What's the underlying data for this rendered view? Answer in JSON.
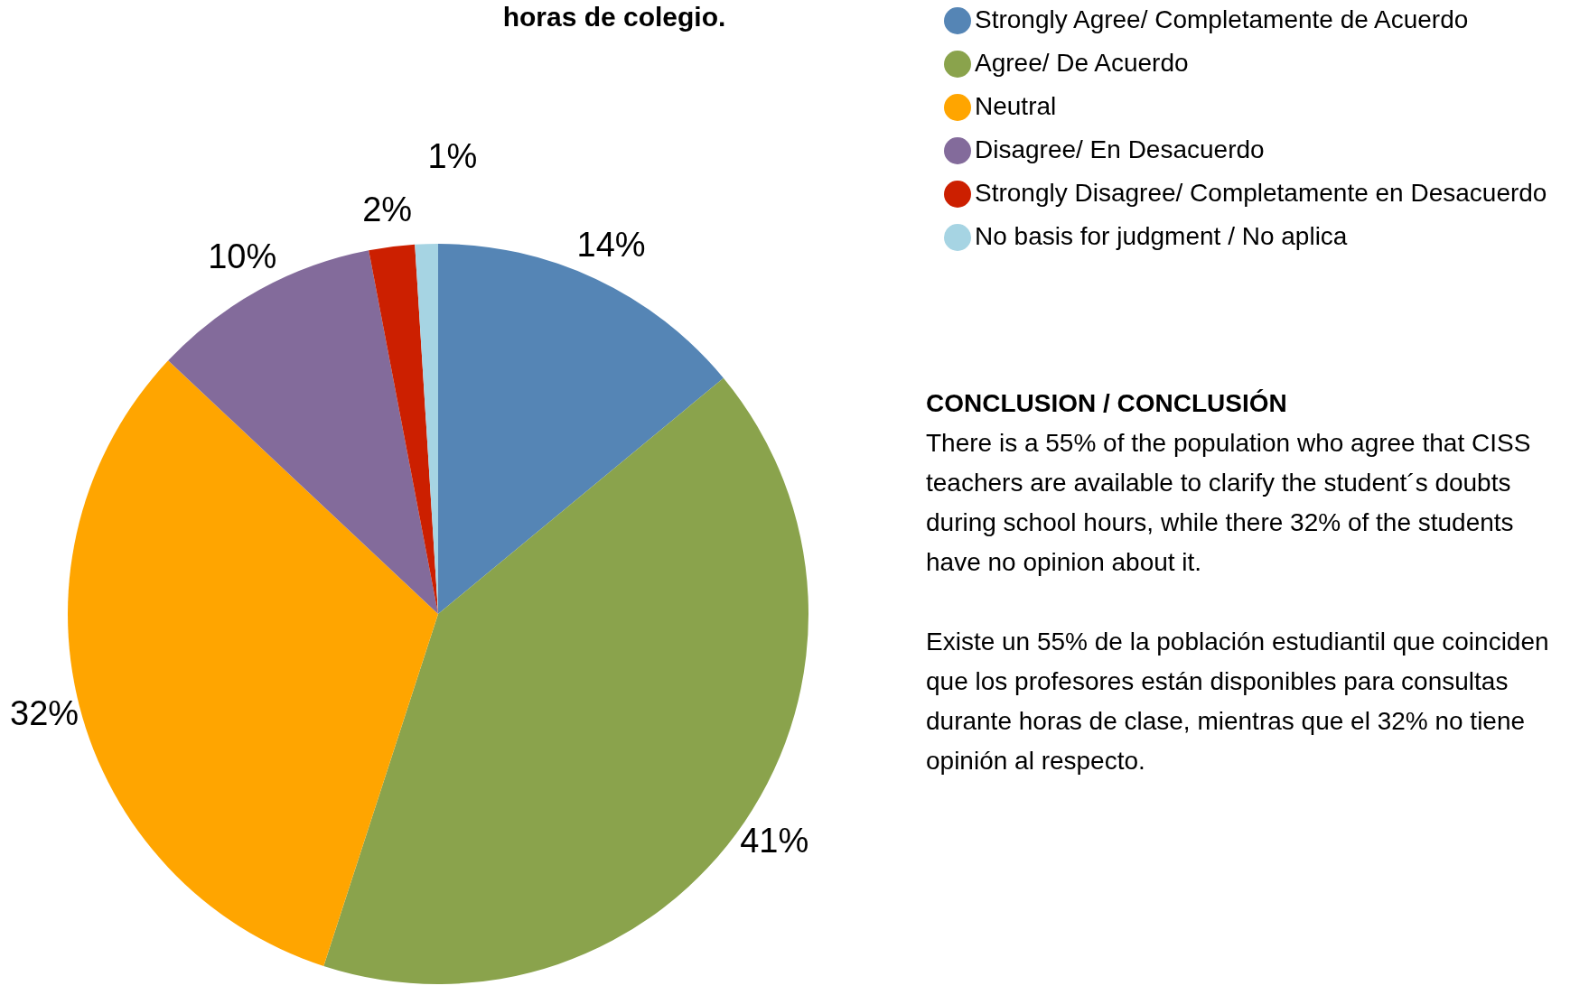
{
  "chart_data": {
    "type": "pie",
    "title": "horas de colegio.",
    "categories": [
      "Strongly Agree/ Completamente de Acuerdo",
      "Agree/ De Acuerdo",
      "Neutral",
      "Disagree/ En Desacuerdo",
      "Strongly Disagree/ Completamente en Desacuerdo",
      "No basis for judgment / No aplica"
    ],
    "values": [
      14,
      41,
      32,
      10,
      2,
      1
    ],
    "colors": [
      "#5585b5",
      "#8aa34c",
      "#ffa500",
      "#836b9b",
      "#cc1f00",
      "#a6d4e3"
    ],
    "value_labels": [
      "14%",
      "41%",
      "32%",
      "10%",
      "2%",
      "1%"
    ],
    "legend": "top right",
    "annotations": [
      "CONCLUSION / CONCLUSIÓN",
      "There is a 55%  of the population who agree that  CISS teachers are available to clarify the student´s doubts during school hours, while there 32% of the students have no opinion about it.",
      "Existe un 55% de la población estudiantil que coinciden que los profesores están disponibles para consultas durante horas de clase, mientras que el 32% no tiene opinión al respecto."
    ]
  }
}
